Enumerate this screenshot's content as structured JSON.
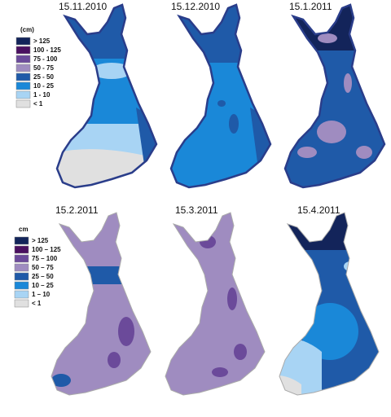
{
  "dates": [
    "15.11.2010",
    "15.12.2010",
    "15.1.2011",
    "15.2.2011",
    "15.3.2011",
    "15.4.2011"
  ],
  "legends": [
    {
      "title": "(cm)",
      "labels": [
        "> 125",
        "100 - 125",
        "75 - 100",
        "50 - 75",
        "25 - 50",
        "10 - 25",
        "1 - 10",
        "< 1"
      ]
    },
    {
      "title": "cm",
      "labels": [
        "> 125",
        "100 – 125",
        "75 – 100",
        "50 – 75",
        "25 – 50",
        "10 – 25",
        "1 – 10",
        "< 1"
      ]
    }
  ]
}
